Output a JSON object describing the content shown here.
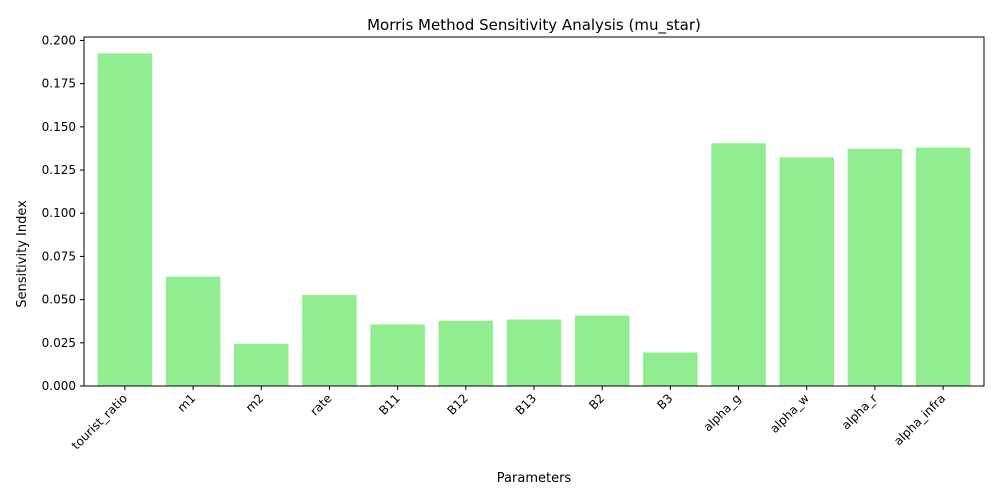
{
  "chart_data": {
    "type": "bar",
    "title": "Morris Method Sensitivity Analysis (mu_star)",
    "xlabel": "Parameters",
    "ylabel": "Sensitivity Index",
    "categories": [
      "tourist_ratio",
      "m1",
      "m2",
      "rate",
      "B11",
      "B12",
      "B13",
      "B2",
      "B3",
      "alpha_g",
      "alpha_w",
      "alpha_r",
      "alpha_infra"
    ],
    "values": [
      0.1925,
      0.0633,
      0.0245,
      0.0527,
      0.0356,
      0.0378,
      0.0385,
      0.0408,
      0.0194,
      0.1405,
      0.1323,
      0.1373,
      0.138
    ],
    "ylim": [
      0,
      0.202
    ],
    "yticks": [
      "0.000",
      "0.025",
      "0.050",
      "0.075",
      "0.100",
      "0.125",
      "0.150",
      "0.175",
      "0.200"
    ],
    "bar_color": "#90ee90",
    "grid": false,
    "legend": false
  }
}
